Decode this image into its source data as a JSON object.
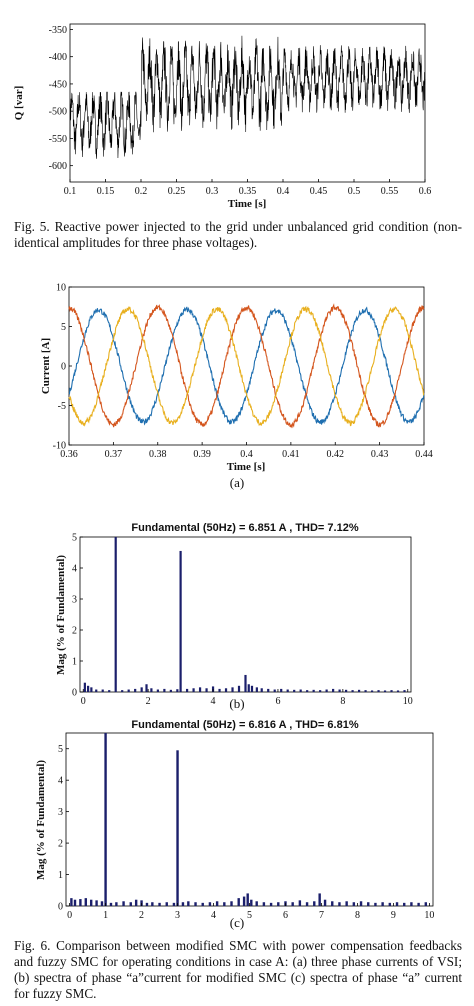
{
  "figures": {
    "fig5_caption": "Fig. 5. Reactive power injected to the grid under unbalanced grid condition (non-identical amplitudes for three phase voltages).",
    "fig6_caption": "Fig. 6.  Comparison between modified SMC with power compensation feedbacks and fuzzy SMC for operating conditions in case A: (a) three phase currents of VSI; (b) spectra of phase “a”current for modified SMC (c) spectra of phase “a” current for fuzzy SMC.",
    "label_a": "(a)",
    "label_b": "(b)",
    "label_c": "(c)"
  },
  "colors": {
    "q": "#000000",
    "phase_a": "#1f6fb0",
    "phase_b": "#d4561e",
    "phase_c": "#e8b020",
    "bar": "#1b1f6b"
  },
  "chart_data": [
    {
      "id": "q",
      "type": "line",
      "xlabel": "Time [s]",
      "ylabel": "Q [var]",
      "xlim": [
        0.1,
        0.6
      ],
      "ylim": [
        -630,
        -340
      ],
      "xticks": [
        0.1,
        0.15,
        0.2,
        0.25,
        0.3,
        0.35,
        0.4,
        0.45,
        0.5,
        0.55,
        0.6
      ],
      "xtick_labels": [
        "0.1",
        "0.15",
        "0.2",
        "0.25",
        "0.3",
        "0.35",
        "0.4",
        "0.45",
        "0.5",
        "0.55",
        "0.6"
      ],
      "yticks": [
        -600,
        -550,
        -500,
        -450,
        -400,
        -350
      ],
      "ytick_labels": [
        "-600",
        "-550",
        "-500",
        "-450",
        "-400",
        "-350"
      ],
      "segments": [
        {
          "x_range": [
            0.1,
            0.2
          ],
          "mean": -520,
          "min": -600,
          "max": -465
        },
        {
          "x_range": [
            0.2,
            0.4
          ],
          "mean": -450,
          "min": -540,
          "max": -360
        },
        {
          "x_range": [
            0.4,
            0.6
          ],
          "mean": -440,
          "min": -505,
          "max": -375
        }
      ]
    },
    {
      "id": "currents",
      "type": "line",
      "xlabel": "Time [s]",
      "ylabel": "Current [A]",
      "xlim": [
        0.36,
        0.44
      ],
      "ylim": [
        -10,
        10
      ],
      "xticks": [
        0.36,
        0.37,
        0.38,
        0.39,
        0.4,
        0.41,
        0.42,
        0.43,
        0.44
      ],
      "xtick_labels": [
        "0.36",
        "0.37",
        "0.38",
        "0.39",
        "0.4",
        "0.41",
        "0.42",
        "0.43",
        "0.44"
      ],
      "yticks": [
        -10,
        -5,
        0,
        5,
        10
      ],
      "ytick_labels": [
        "-10",
        "-5",
        "0",
        "5",
        "10"
      ],
      "frequency_hz": 50,
      "series": [
        {
          "amplitude": 7.1,
          "phase_deg": 330
        },
        {
          "amplitude": 7.4,
          "phase_deg": 90
        },
        {
          "amplitude": 7.2,
          "phase_deg": 210
        }
      ]
    },
    {
      "id": "spectrum_b",
      "type": "bar",
      "title": "Fundamental (50Hz) = 6.851 A , THD= 7.12%",
      "xlabel": "",
      "ylabel": "Mag (% of Fundamental)",
      "xlim": [
        -0.1,
        10.1
      ],
      "ylim": [
        0,
        5
      ],
      "xticks": [
        0,
        2,
        4,
        6,
        8,
        10
      ],
      "xtick_labels": [
        "0",
        "2",
        "4",
        "6",
        "8",
        "10"
      ],
      "yticks": [
        0,
        1,
        2,
        3,
        4,
        5
      ],
      "ytick_labels": [
        "0",
        "1",
        "2",
        "3",
        "4",
        "5"
      ],
      "bars": [
        {
          "x": 0.05,
          "value": 0.3
        },
        {
          "x": 0.15,
          "value": 0.2
        },
        {
          "x": 0.25,
          "value": 0.15
        },
        {
          "x": 0.4,
          "value": 0.08
        },
        {
          "x": 0.6,
          "value": 0.08
        },
        {
          "x": 0.8,
          "value": 0.06
        },
        {
          "x": 1.0,
          "value": 5.0
        },
        {
          "x": 1.2,
          "value": 0.06
        },
        {
          "x": 1.4,
          "value": 0.08
        },
        {
          "x": 1.6,
          "value": 0.1
        },
        {
          "x": 1.8,
          "value": 0.15
        },
        {
          "x": 1.95,
          "value": 0.25
        },
        {
          "x": 2.1,
          "value": 0.12
        },
        {
          "x": 2.3,
          "value": 0.08
        },
        {
          "x": 2.5,
          "value": 0.1
        },
        {
          "x": 2.7,
          "value": 0.07
        },
        {
          "x": 2.9,
          "value": 0.09
        },
        {
          "x": 3.0,
          "value": 4.55
        },
        {
          "x": 3.2,
          "value": 0.1
        },
        {
          "x": 3.4,
          "value": 0.12
        },
        {
          "x": 3.6,
          "value": 0.15
        },
        {
          "x": 3.8,
          "value": 0.12
        },
        {
          "x": 4.0,
          "value": 0.18
        },
        {
          "x": 4.2,
          "value": 0.1
        },
        {
          "x": 4.4,
          "value": 0.12
        },
        {
          "x": 4.6,
          "value": 0.15
        },
        {
          "x": 4.8,
          "value": 0.2
        },
        {
          "x": 5.0,
          "value": 0.55
        },
        {
          "x": 5.1,
          "value": 0.25
        },
        {
          "x": 5.2,
          "value": 0.2
        },
        {
          "x": 5.35,
          "value": 0.15
        },
        {
          "x": 5.5,
          "value": 0.12
        },
        {
          "x": 5.7,
          "value": 0.1
        },
        {
          "x": 5.9,
          "value": 0.08
        },
        {
          "x": 6.1,
          "value": 0.1
        },
        {
          "x": 6.3,
          "value": 0.08
        },
        {
          "x": 6.5,
          "value": 0.07
        },
        {
          "x": 6.7,
          "value": 0.08
        },
        {
          "x": 6.9,
          "value": 0.06
        },
        {
          "x": 7.1,
          "value": 0.07
        },
        {
          "x": 7.3,
          "value": 0.06
        },
        {
          "x": 7.5,
          "value": 0.08
        },
        {
          "x": 7.7,
          "value": 0.1
        },
        {
          "x": 7.9,
          "value": 0.08
        },
        {
          "x": 8.1,
          "value": 0.07
        },
        {
          "x": 8.3,
          "value": 0.06
        },
        {
          "x": 8.5,
          "value": 0.07
        },
        {
          "x": 8.7,
          "value": 0.06
        },
        {
          "x": 8.9,
          "value": 0.05
        },
        {
          "x": 9.1,
          "value": 0.06
        },
        {
          "x": 9.3,
          "value": 0.05
        },
        {
          "x": 9.5,
          "value": 0.06
        },
        {
          "x": 9.7,
          "value": 0.05
        },
        {
          "x": 9.9,
          "value": 0.06
        }
      ]
    },
    {
      "id": "spectrum_c",
      "type": "bar",
      "title": "Fundamental (50Hz) = 6.816 A , THD= 6.81%",
      "xlabel": "",
      "ylabel": "Mag (% of Fundamental)",
      "xlim": [
        -0.1,
        10.1
      ],
      "ylim": [
        0,
        5.5
      ],
      "xticks": [
        0,
        1,
        2,
        3,
        4,
        5,
        6,
        7,
        8,
        9,
        10
      ],
      "xtick_labels": [
        "0",
        "1",
        "2",
        "3",
        "4",
        "5",
        "6",
        "7",
        "8",
        "9",
        "10"
      ],
      "yticks": [
        0,
        1,
        2,
        3,
        4,
        5
      ],
      "ytick_labels": [
        "0",
        "1",
        "2",
        "3",
        "4",
        "5"
      ],
      "bars": [
        {
          "x": 0.05,
          "value": 0.25
        },
        {
          "x": 0.15,
          "value": 0.2
        },
        {
          "x": 0.3,
          "value": 0.22
        },
        {
          "x": 0.45,
          "value": 0.25
        },
        {
          "x": 0.6,
          "value": 0.2
        },
        {
          "x": 0.75,
          "value": 0.18
        },
        {
          "x": 0.9,
          "value": 0.15
        },
        {
          "x": 1.0,
          "value": 5.5
        },
        {
          "x": 1.15,
          "value": 0.1
        },
        {
          "x": 1.3,
          "value": 0.12
        },
        {
          "x": 1.5,
          "value": 0.15
        },
        {
          "x": 1.7,
          "value": 0.12
        },
        {
          "x": 1.85,
          "value": 0.2
        },
        {
          "x": 2.0,
          "value": 0.18
        },
        {
          "x": 2.15,
          "value": 0.1
        },
        {
          "x": 2.3,
          "value": 0.12
        },
        {
          "x": 2.5,
          "value": 0.1
        },
        {
          "x": 2.7,
          "value": 0.12
        },
        {
          "x": 2.9,
          "value": 0.1
        },
        {
          "x": 3.0,
          "value": 4.95
        },
        {
          "x": 3.15,
          "value": 0.12
        },
        {
          "x": 3.3,
          "value": 0.15
        },
        {
          "x": 3.5,
          "value": 0.12
        },
        {
          "x": 3.7,
          "value": 0.1
        },
        {
          "x": 3.9,
          "value": 0.12
        },
        {
          "x": 4.1,
          "value": 0.15
        },
        {
          "x": 4.3,
          "value": 0.12
        },
        {
          "x": 4.5,
          "value": 0.15
        },
        {
          "x": 4.7,
          "value": 0.25
        },
        {
          "x": 4.85,
          "value": 0.3
        },
        {
          "x": 4.95,
          "value": 0.4
        },
        {
          "x": 5.05,
          "value": 0.2
        },
        {
          "x": 5.2,
          "value": 0.15
        },
        {
          "x": 5.4,
          "value": 0.12
        },
        {
          "x": 5.6,
          "value": 0.1
        },
        {
          "x": 5.8,
          "value": 0.12
        },
        {
          "x": 6.0,
          "value": 0.15
        },
        {
          "x": 6.2,
          "value": 0.12
        },
        {
          "x": 6.4,
          "value": 0.18
        },
        {
          "x": 6.6,
          "value": 0.12
        },
        {
          "x": 6.8,
          "value": 0.15
        },
        {
          "x": 6.95,
          "value": 0.4
        },
        {
          "x": 7.1,
          "value": 0.2
        },
        {
          "x": 7.3,
          "value": 0.15
        },
        {
          "x": 7.5,
          "value": 0.12
        },
        {
          "x": 7.7,
          "value": 0.15
        },
        {
          "x": 7.9,
          "value": 0.12
        },
        {
          "x": 8.1,
          "value": 0.15
        },
        {
          "x": 8.3,
          "value": 0.12
        },
        {
          "x": 8.5,
          "value": 0.1
        },
        {
          "x": 8.7,
          "value": 0.12
        },
        {
          "x": 8.9,
          "value": 0.1
        },
        {
          "x": 9.1,
          "value": 0.12
        },
        {
          "x": 9.3,
          "value": 0.1
        },
        {
          "x": 9.5,
          "value": 0.12
        },
        {
          "x": 9.7,
          "value": 0.1
        },
        {
          "x": 9.9,
          "value": 0.12
        }
      ]
    }
  ]
}
